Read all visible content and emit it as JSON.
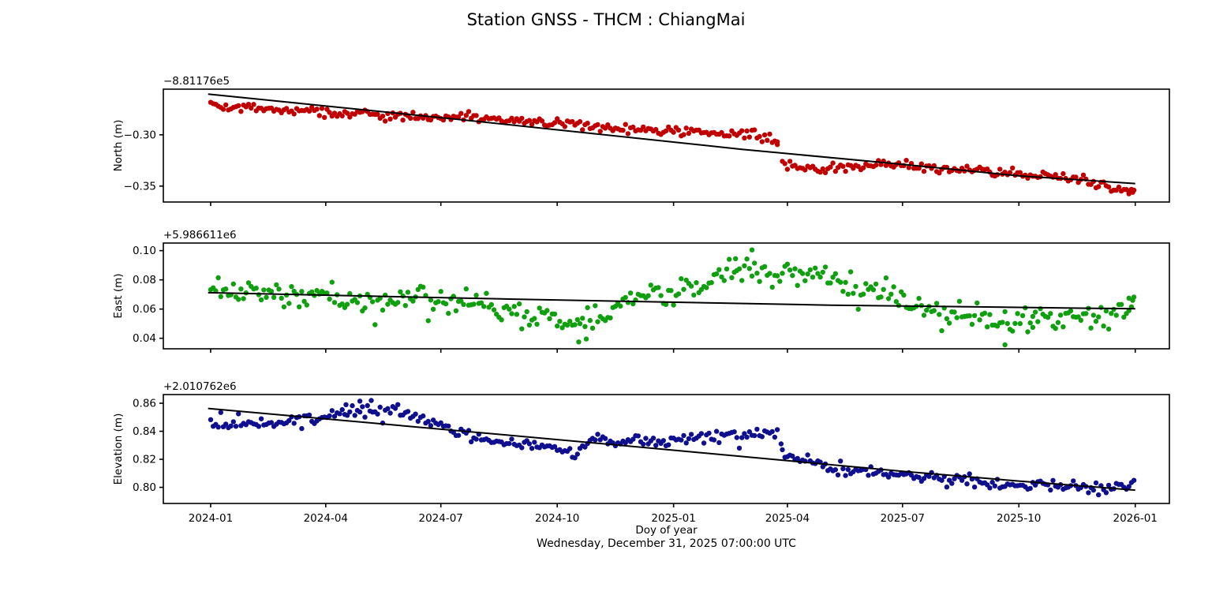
{
  "title": "Station GNSS - THCM : ChiangMai",
  "xlabel": "Doy of year",
  "footer": "Wednesday, December 31, 2025 07:00:00 UTC",
  "chart_data": {
    "type": "scatter",
    "x_unit": "days since 2024-01-01",
    "xlim": [
      -37.4,
      758
    ],
    "grid": false,
    "legend": "none",
    "xticks": [
      {
        "day": 0,
        "label": "2024-01"
      },
      {
        "day": 91,
        "label": "2024-04"
      },
      {
        "day": 182,
        "label": "2024-07"
      },
      {
        "day": 274,
        "label": "2024-10"
      },
      {
        "day": 366,
        "label": "2025-01"
      },
      {
        "day": 456,
        "label": "2025-04"
      },
      {
        "day": 547,
        "label": "2025-07"
      },
      {
        "day": 639,
        "label": "2025-10"
      },
      {
        "day": 731,
        "label": "2026-01"
      }
    ],
    "sampling": {
      "start": 0,
      "end": 730,
      "step": 2
    },
    "subplots": [
      {
        "name": "north",
        "ylabel": "North (m)",
        "offset_label": "−8.81176e5",
        "color": "#c00000",
        "trend_color": "#000000",
        "ylim": [
          -0.3655,
          -0.2555
        ],
        "yticks": [
          {
            "v": -0.3,
            "label": "−0.30"
          },
          {
            "v": -0.35,
            "label": "−0.35"
          }
        ],
        "points_path": [
          [
            0,
            -0.2705
          ],
          [
            20,
            -0.273
          ],
          [
            40,
            -0.2745
          ],
          [
            60,
            -0.2755
          ],
          [
            80,
            -0.2775
          ],
          [
            100,
            -0.279
          ],
          [
            120,
            -0.2795
          ],
          [
            135,
            -0.2825
          ],
          [
            150,
            -0.281
          ],
          [
            170,
            -0.2835
          ],
          [
            190,
            -0.2825
          ],
          [
            210,
            -0.2845
          ],
          [
            230,
            -0.2855
          ],
          [
            250,
            -0.2875
          ],
          [
            270,
            -0.288
          ],
          [
            290,
            -0.2895
          ],
          [
            310,
            -0.2925
          ],
          [
            330,
            -0.2945
          ],
          [
            350,
            -0.296
          ],
          [
            366,
            -0.2965
          ],
          [
            390,
            -0.2985
          ],
          [
            410,
            -0.2995
          ],
          [
            430,
            -0.3
          ],
          [
            443,
            -0.3035
          ],
          [
            448,
            -0.307
          ],
          [
            452,
            -0.3265
          ],
          [
            465,
            -0.331
          ],
          [
            478,
            -0.3335
          ],
          [
            492,
            -0.3325
          ],
          [
            508,
            -0.3305
          ],
          [
            522,
            -0.329
          ],
          [
            538,
            -0.329
          ],
          [
            555,
            -0.3305
          ],
          [
            575,
            -0.3325
          ],
          [
            595,
            -0.334
          ],
          [
            615,
            -0.3355
          ],
          [
            635,
            -0.3375
          ],
          [
            655,
            -0.3395
          ],
          [
            675,
            -0.3415
          ],
          [
            688,
            -0.3445
          ],
          [
            695,
            -0.3465
          ],
          [
            705,
            -0.349
          ],
          [
            715,
            -0.351
          ],
          [
            722,
            -0.3525
          ],
          [
            730,
            -0.354
          ]
        ],
        "trend": [
          [
            -2,
            -0.2603
          ],
          [
            200,
            -0.2855
          ],
          [
            420,
            -0.3141
          ],
          [
            547,
            -0.3288
          ],
          [
            639,
            -0.34
          ],
          [
            731,
            -0.3475
          ]
        ],
        "gaps": [
          [
            449,
            451
          ]
        ],
        "noise_sigma": 0.0022,
        "outlier_prob": 0.03,
        "outlier_scale": 2.0,
        "extra_points": [
          [
            448,
            -0.3095
          ],
          [
            726,
            -0.3575
          ],
          [
            729,
            -0.356
          ]
        ],
        "seed": 42
      },
      {
        "name": "east",
        "ylabel": "East (m)",
        "offset_label": "+5.986611e6",
        "color": "#0f9f0f",
        "trend_color": "#000000",
        "ylim": [
          0.0328,
          0.1052
        ],
        "yticks": [
          {
            "v": 0.1,
            "label": "0.10"
          },
          {
            "v": 0.08,
            "label": "0.08"
          },
          {
            "v": 0.06,
            "label": "0.06"
          },
          {
            "v": 0.04,
            "label": "0.04"
          }
        ],
        "points_path": [
          [
            0,
            0.0745
          ],
          [
            15,
            0.075
          ],
          [
            30,
            0.0735
          ],
          [
            45,
            0.071
          ],
          [
            60,
            0.07
          ],
          [
            75,
            0.0685
          ],
          [
            90,
            0.0695
          ],
          [
            105,
            0.066
          ],
          [
            120,
            0.0655
          ],
          [
            135,
            0.067
          ],
          [
            150,
            0.0675
          ],
          [
            165,
            0.0665
          ],
          [
            180,
            0.0655
          ],
          [
            195,
            0.0655
          ],
          [
            210,
            0.0635
          ],
          [
            225,
            0.0605
          ],
          [
            240,
            0.0585
          ],
          [
            255,
            0.056
          ],
          [
            270,
            0.0525
          ],
          [
            285,
            0.05
          ],
          [
            295,
            0.047
          ],
          [
            305,
            0.054
          ],
          [
            320,
            0.06
          ],
          [
            330,
            0.0665
          ],
          [
            345,
            0.069
          ],
          [
            360,
            0.0695
          ],
          [
            375,
            0.075
          ],
          [
            390,
            0.0805
          ],
          [
            405,
            0.086
          ],
          [
            420,
            0.0875
          ],
          [
            435,
            0.0855
          ],
          [
            450,
            0.083
          ],
          [
            465,
            0.0835
          ],
          [
            480,
            0.082
          ],
          [
            490,
            0.0805
          ],
          [
            505,
            0.0775
          ],
          [
            520,
            0.074
          ],
          [
            535,
            0.0715
          ],
          [
            550,
            0.068
          ],
          [
            565,
            0.062
          ],
          [
            580,
            0.0585
          ],
          [
            595,
            0.058
          ],
          [
            610,
            0.0565
          ],
          [
            625,
            0.052
          ],
          [
            640,
            0.0525
          ],
          [
            655,
            0.054
          ],
          [
            670,
            0.0535
          ],
          [
            685,
            0.054
          ],
          [
            700,
            0.0565
          ],
          [
            715,
            0.059
          ],
          [
            730,
            0.0625
          ]
        ],
        "trend": [
          [
            -2,
            0.0712
          ],
          [
            240,
            0.0668
          ],
          [
            490,
            0.0627
          ],
          [
            731,
            0.0602
          ]
        ],
        "gaps": [],
        "noise_sigma": 0.0042,
        "outlier_prob": 0.06,
        "outlier_scale": 2.3,
        "extra_points": [
          [
            428,
            0.1005
          ],
          [
            415,
            0.0945
          ],
          [
            291,
            0.0375
          ],
          [
            297,
            0.0395
          ],
          [
            628,
            0.0355
          ],
          [
            650,
            0.0475
          ],
          [
            726,
            0.0675
          ],
          [
            729,
            0.066
          ]
        ],
        "seed": 1337
      },
      {
        "name": "elevation",
        "ylabel": "Elevation (m)",
        "offset_label": "+2.010762e6",
        "color": "#10108f",
        "trend_color": "#000000",
        "ylim": [
          0.7885,
          0.8662
        ],
        "yticks": [
          {
            "v": 0.86,
            "label": "0.86"
          },
          {
            "v": 0.84,
            "label": "0.84"
          },
          {
            "v": 0.82,
            "label": "0.82"
          },
          {
            "v": 0.8,
            "label": "0.80"
          }
        ],
        "points_path": [
          [
            0,
            0.845
          ],
          [
            15,
            0.8445
          ],
          [
            30,
            0.8455
          ],
          [
            45,
            0.846
          ],
          [
            60,
            0.847
          ],
          [
            75,
            0.8485
          ],
          [
            90,
            0.85
          ],
          [
            105,
            0.8525
          ],
          [
            115,
            0.854
          ],
          [
            125,
            0.8555
          ],
          [
            135,
            0.8545
          ],
          [
            145,
            0.8555
          ],
          [
            155,
            0.852
          ],
          [
            165,
            0.85
          ],
          [
            180,
            0.8435
          ],
          [
            195,
            0.84
          ],
          [
            210,
            0.8365
          ],
          [
            225,
            0.8325
          ],
          [
            240,
            0.8315
          ],
          [
            255,
            0.829
          ],
          [
            270,
            0.8285
          ],
          [
            280,
            0.827
          ],
          [
            290,
            0.824
          ],
          [
            300,
            0.8345
          ],
          [
            310,
            0.8355
          ],
          [
            320,
            0.8335
          ],
          [
            330,
            0.8335
          ],
          [
            340,
            0.834
          ],
          [
            350,
            0.8335
          ],
          [
            365,
            0.8335
          ],
          [
            380,
            0.8345
          ],
          [
            395,
            0.8355
          ],
          [
            410,
            0.8375
          ],
          [
            425,
            0.8385
          ],
          [
            440,
            0.839
          ],
          [
            448,
            0.8395
          ],
          [
            452,
            0.8245
          ],
          [
            460,
            0.8225
          ],
          [
            470,
            0.8205
          ],
          [
            480,
            0.8185
          ],
          [
            490,
            0.8135
          ],
          [
            495,
            0.8125
          ],
          [
            505,
            0.8145
          ],
          [
            515,
            0.8135
          ],
          [
            530,
            0.811
          ],
          [
            545,
            0.8095
          ],
          [
            560,
            0.808
          ],
          [
            575,
            0.8065
          ],
          [
            590,
            0.8055
          ],
          [
            605,
            0.8035
          ],
          [
            620,
            0.8035
          ],
          [
            635,
            0.8025
          ],
          [
            650,
            0.8015
          ],
          [
            665,
            0.8015
          ],
          [
            680,
            0.8005
          ],
          [
            695,
            0.8
          ],
          [
            710,
            0.8
          ],
          [
            720,
            0.8005
          ],
          [
            730,
            0.801
          ]
        ],
        "trend": [
          [
            -2,
            0.8563
          ],
          [
            226,
            0.838
          ],
          [
            366,
            0.8265
          ],
          [
            456,
            0.819
          ],
          [
            547,
            0.8115
          ],
          [
            639,
            0.8045
          ],
          [
            731,
            0.798
          ]
        ],
        "gaps": [
          [
            449,
            451
          ]
        ],
        "noise_sigma": 0.0022,
        "outlier_prob": 0.04,
        "outlier_scale": 2.1,
        "extra_points": [
          [
            107,
            0.859
          ],
          [
            118,
            0.8615
          ],
          [
            127,
            0.862
          ],
          [
            451,
            0.831
          ]
        ],
        "seed": 2024
      }
    ]
  }
}
